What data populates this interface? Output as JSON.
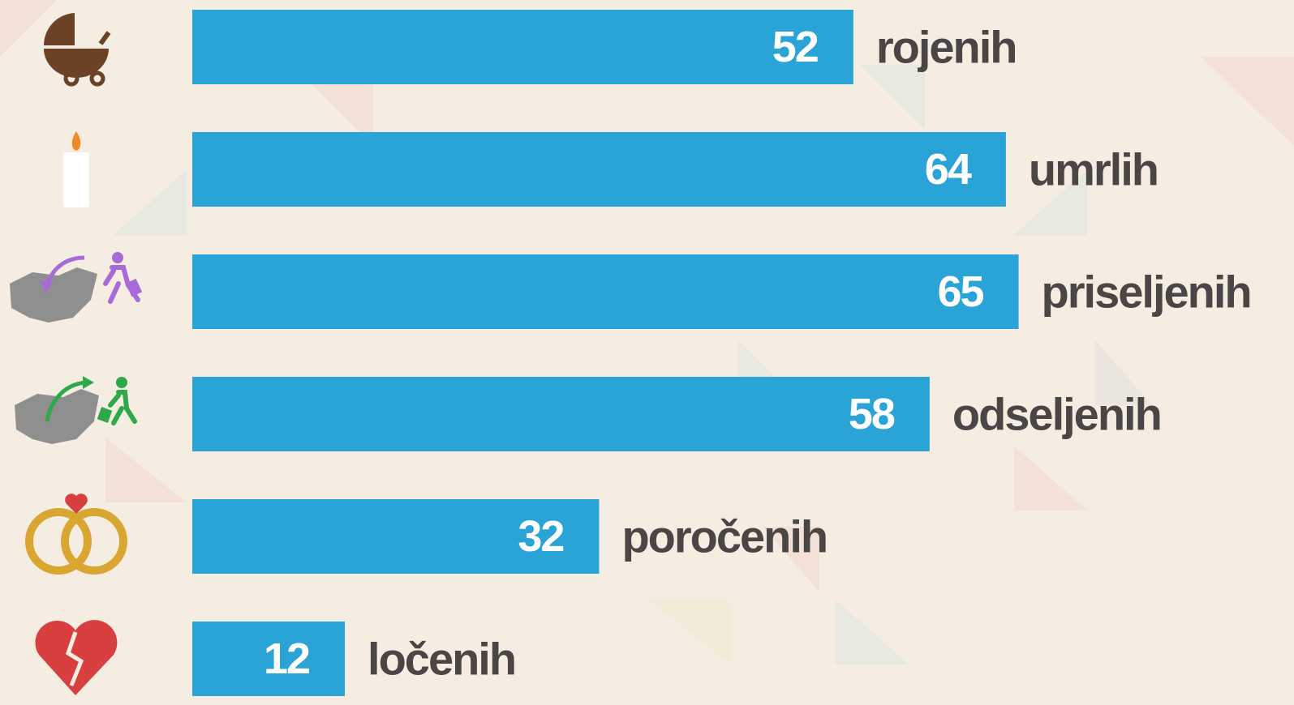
{
  "chart_data": {
    "type": "bar",
    "categories": [
      "rojenih",
      "umrlih",
      "priseljenih",
      "odseljenih",
      "poročenih",
      "ločenih"
    ],
    "values": [
      52,
      64,
      65,
      58,
      32,
      12
    ],
    "color": "#2aa3d6"
  }
}
